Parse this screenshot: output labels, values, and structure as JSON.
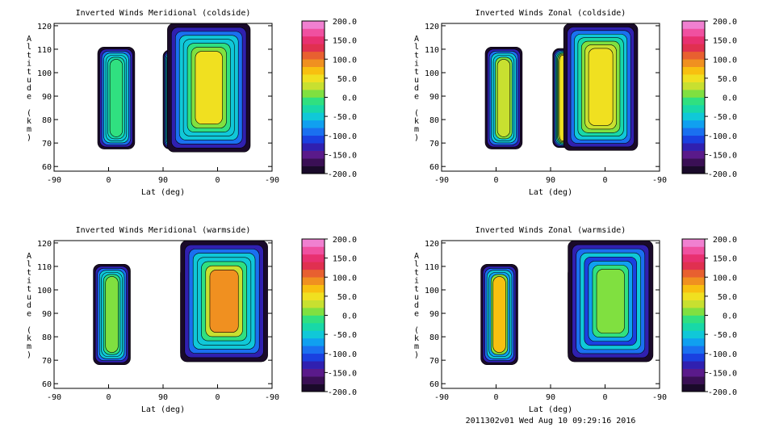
{
  "footer": "2011302v01 Wed Aug 10 09:29:16 2016",
  "colorbar": {
    "ticks": [
      "200.0",
      "150.0",
      "100.0",
      "50.0",
      "0.0",
      "-50.0",
      "-100.0",
      "-150.0",
      "-200.0"
    ],
    "colors": [
      "#1a0a2a",
      "#3a0f55",
      "#5a1a8a",
      "#3020b0",
      "#1a40e0",
      "#1a70f0",
      "#10a0f0",
      "#10c8d8",
      "#18d8a8",
      "#30e080",
      "#80e040",
      "#c8e030",
      "#f0e020",
      "#f8c010",
      "#f09020",
      "#e86030",
      "#e03050",
      "#e83070",
      "#f050a0",
      "#f080d0"
    ]
  },
  "chart_data": [
    {
      "type": "heatmap",
      "title": "Inverted Winds Meridional (coldside)",
      "xlabel": "Lat (deg)",
      "ylabel": "Altitude (km)",
      "x_ticks": [
        "-90",
        "0",
        "90",
        "0",
        "-90"
      ],
      "y_ticks": [
        "60",
        "70",
        "80",
        "90",
        "100",
        "110",
        "120"
      ],
      "ylim": [
        58,
        121
      ],
      "zlim": [
        -200,
        200
      ]
    },
    {
      "type": "heatmap",
      "title": "Inverted Winds Zonal (coldside)",
      "xlabel": "Lat (deg)",
      "ylabel": "Altitude (km)",
      "x_ticks": [
        "-90",
        "0",
        "90",
        "0",
        "-90"
      ],
      "y_ticks": [
        "60",
        "70",
        "80",
        "90",
        "100",
        "110",
        "120"
      ],
      "ylim": [
        58,
        121
      ],
      "zlim": [
        -200,
        200
      ]
    },
    {
      "type": "heatmap",
      "title": "Inverted Winds Meridional (warmside)",
      "xlabel": "Lat (deg)",
      "ylabel": "Altitude (km)",
      "x_ticks": [
        "-90",
        "0",
        "90",
        "0",
        "-90"
      ],
      "y_ticks": [
        "60",
        "70",
        "80",
        "90",
        "100",
        "110",
        "120"
      ],
      "ylim": [
        58,
        121
      ],
      "zlim": [
        -200,
        200
      ]
    },
    {
      "type": "heatmap",
      "title": "Inverted Winds Zonal (warmside)",
      "xlabel": "Lat (deg)",
      "ylabel": "Altitude (km)",
      "x_ticks": [
        "-90",
        "0",
        "90",
        "0",
        "-90"
      ],
      "y_ticks": [
        "60",
        "70",
        "80",
        "90",
        "100",
        "110",
        "120"
      ],
      "ylim": [
        58,
        121
      ],
      "zlim": [
        -200,
        200
      ]
    }
  ]
}
